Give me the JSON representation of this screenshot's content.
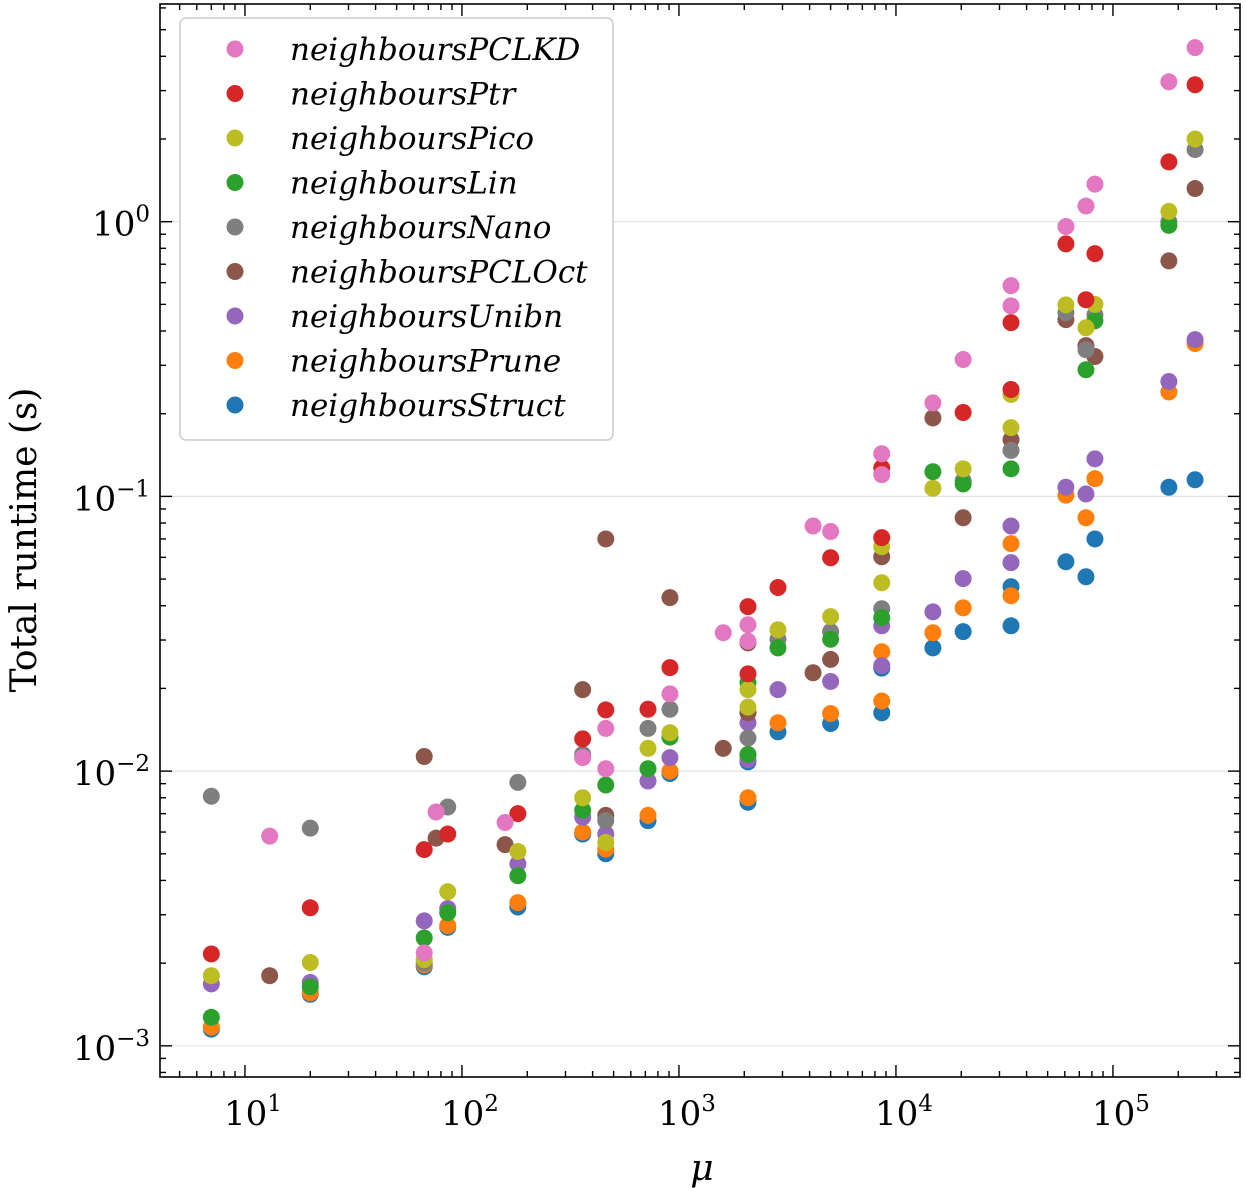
{
  "chart_data": {
    "type": "scatter",
    "title": "",
    "xlabel": "μ",
    "ylabel": "Total runtime (s)",
    "xscale": "log",
    "yscale": "log",
    "xlim": [
      4.06,
      385000
    ],
    "ylim": [
      0.00077,
      6.2
    ],
    "x_ticks": [
      10,
      100,
      1000,
      10000,
      100000
    ],
    "x_tick_labels": [
      {
        "base": "10",
        "exp": "1"
      },
      {
        "base": "10",
        "exp": "2"
      },
      {
        "base": "10",
        "exp": "3"
      },
      {
        "base": "10",
        "exp": "4"
      },
      {
        "base": "10",
        "exp": "5"
      }
    ],
    "y_ticks": [
      0.001,
      0.01,
      0.1,
      1
    ],
    "y_tick_labels": [
      {
        "base": "10",
        "exp": "−3"
      },
      {
        "base": "10",
        "exp": "−2"
      },
      {
        "base": "10",
        "exp": "−1"
      },
      {
        "base": "10",
        "exp": "0"
      }
    ],
    "grid": "horizontal major",
    "legend_position": "top-left",
    "series": [
      {
        "name": "neighboursPCLKD",
        "color": "#e377c2",
        "points": [
          [
            13,
            0.0058
          ],
          [
            67,
            0.00218
          ],
          [
            76,
            0.0071
          ],
          [
            158,
            0.0065
          ],
          [
            360,
            0.0112
          ],
          [
            460,
            0.0143
          ],
          [
            460,
            0.0102
          ],
          [
            909,
            0.0191
          ],
          [
            1600,
            0.0319
          ],
          [
            2080,
            0.0341
          ],
          [
            2080,
            0.0297
          ],
          [
            4150,
            0.078
          ],
          [
            5000,
            0.0745
          ],
          [
            8600,
            0.143
          ],
          [
            8600,
            0.12
          ],
          [
            14800,
            0.219
          ],
          [
            20400,
            0.315
          ],
          [
            33900,
            0.585
          ],
          [
            33900,
            0.494
          ],
          [
            60700,
            0.96
          ],
          [
            75100,
            1.14
          ],
          [
            82600,
            1.37
          ],
          [
            181000,
            3.23
          ],
          [
            239000,
            4.3
          ]
        ]
      },
      {
        "name": "neighboursPtr",
        "color": "#d62728",
        "points": [
          [
            7,
            0.00216
          ],
          [
            20,
            0.00318
          ],
          [
            67,
            0.00518
          ],
          [
            86,
            0.0059
          ],
          [
            181,
            0.007
          ],
          [
            360,
            0.0131
          ],
          [
            460,
            0.0167
          ],
          [
            720,
            0.0168
          ],
          [
            909,
            0.0238
          ],
          [
            2080,
            0.0397
          ],
          [
            2080,
            0.0226
          ],
          [
            2860,
            0.0466
          ],
          [
            5000,
            0.0598
          ],
          [
            8600,
            0.127
          ],
          [
            8600,
            0.0708
          ],
          [
            20400,
            0.202
          ],
          [
            33900,
            0.429
          ],
          [
            33900,
            0.245
          ],
          [
            60700,
            0.83
          ],
          [
            75100,
            0.52
          ],
          [
            82600,
            0.765
          ],
          [
            181000,
            1.65
          ],
          [
            239000,
            3.15
          ]
        ]
      },
      {
        "name": "neighboursPico",
        "color": "#bcbd22",
        "points": [
          [
            7,
            0.0018
          ],
          [
            20,
            0.00201
          ],
          [
            67,
            0.00206
          ],
          [
            86,
            0.00364
          ],
          [
            181,
            0.0051
          ],
          [
            360,
            0.008
          ],
          [
            460,
            0.0055
          ],
          [
            720,
            0.0121
          ],
          [
            909,
            0.0138
          ],
          [
            2080,
            0.0198
          ],
          [
            2080,
            0.0171
          ],
          [
            2860,
            0.0327
          ],
          [
            5000,
            0.0365
          ],
          [
            8600,
            0.0656
          ],
          [
            8600,
            0.0485
          ],
          [
            14800,
            0.107
          ],
          [
            20400,
            0.126
          ],
          [
            33900,
            0.235
          ],
          [
            33900,
            0.178
          ],
          [
            60700,
            0.498
          ],
          [
            75100,
            0.411
          ],
          [
            82600,
            0.5
          ],
          [
            181000,
            1.09
          ],
          [
            239000,
            2.0
          ]
        ]
      },
      {
        "name": "neighboursLin",
        "color": "#2ca02c",
        "points": [
          [
            7,
            0.00127
          ],
          [
            20,
            0.00164
          ],
          [
            67,
            0.00247
          ],
          [
            86,
            0.00305
          ],
          [
            181,
            0.00416
          ],
          [
            360,
            0.0072
          ],
          [
            460,
            0.0089
          ],
          [
            720,
            0.0102
          ],
          [
            909,
            0.0133
          ],
          [
            2080,
            0.021
          ],
          [
            2080,
            0.0115
          ],
          [
            2860,
            0.0281
          ],
          [
            5000,
            0.0302
          ],
          [
            8600,
            0.0362
          ],
          [
            14800,
            0.123
          ],
          [
            20400,
            0.111
          ],
          [
            33900,
            0.126
          ],
          [
            75100,
            0.289
          ],
          [
            82600,
            0.436
          ],
          [
            181000,
            0.97
          ]
        ]
      },
      {
        "name": "neighboursNano",
        "color": "#7f7f7f",
        "points": [
          [
            7,
            0.0081
          ],
          [
            20,
            0.0062
          ],
          [
            67,
            0.002
          ],
          [
            86,
            0.0074
          ],
          [
            181,
            0.0091
          ],
          [
            360,
            0.0115
          ],
          [
            460,
            0.0066
          ],
          [
            720,
            0.0143
          ],
          [
            909,
            0.0168
          ],
          [
            2080,
            0.0132
          ],
          [
            2860,
            0.0302
          ],
          [
            5000,
            0.0322
          ],
          [
            8600,
            0.039
          ],
          [
            20400,
            0.114
          ],
          [
            33900,
            0.147
          ],
          [
            60700,
            0.466
          ],
          [
            75100,
            0.342
          ],
          [
            82600,
            0.458
          ],
          [
            181000,
            1.0
          ],
          [
            239000,
            1.83
          ]
        ]
      },
      {
        "name": "neighboursPCLOct",
        "color": "#8c564b",
        "points": [
          [
            13,
            0.0018
          ],
          [
            67,
            0.0113
          ],
          [
            76,
            0.0057
          ],
          [
            158,
            0.0054
          ],
          [
            360,
            0.0198
          ],
          [
            460,
            0.07
          ],
          [
            460,
            0.0069
          ],
          [
            909,
            0.0428
          ],
          [
            1600,
            0.0121
          ],
          [
            2080,
            0.0293
          ],
          [
            2080,
            0.0163
          ],
          [
            4150,
            0.0228
          ],
          [
            5000,
            0.0255
          ],
          [
            8600,
            0.0603
          ],
          [
            14800,
            0.193
          ],
          [
            20400,
            0.0836
          ],
          [
            33900,
            0.161
          ],
          [
            60700,
            0.44
          ],
          [
            75100,
            0.354
          ],
          [
            82600,
            0.323
          ],
          [
            181000,
            0.72
          ],
          [
            239000,
            1.32
          ]
        ]
      },
      {
        "name": "neighboursUnibn",
        "color": "#9467bd",
        "points": [
          [
            7,
            0.00168
          ],
          [
            20,
            0.0017
          ],
          [
            67,
            0.00285
          ],
          [
            86,
            0.00316
          ],
          [
            181,
            0.0046
          ],
          [
            360,
            0.0068
          ],
          [
            460,
            0.0059
          ],
          [
            720,
            0.0092
          ],
          [
            909,
            0.0112
          ],
          [
            2080,
            0.015
          ],
          [
            2080,
            0.011
          ],
          [
            2860,
            0.0198
          ],
          [
            5000,
            0.0212
          ],
          [
            8600,
            0.0338
          ],
          [
            8600,
            0.0242
          ],
          [
            14800,
            0.038
          ],
          [
            20400,
            0.0502
          ],
          [
            33900,
            0.078
          ],
          [
            33900,
            0.0574
          ],
          [
            60700,
            0.108
          ],
          [
            75100,
            0.102
          ],
          [
            82600,
            0.137
          ],
          [
            181000,
            0.262
          ],
          [
            239000,
            0.372
          ]
        ]
      },
      {
        "name": "neighboursPrune",
        "color": "#ff7f0e",
        "points": [
          [
            7,
            0.00117
          ],
          [
            20,
            0.00156
          ],
          [
            67,
            0.00197
          ],
          [
            86,
            0.00274
          ],
          [
            181,
            0.00332
          ],
          [
            360,
            0.006
          ],
          [
            460,
            0.0052
          ],
          [
            720,
            0.0069
          ],
          [
            909,
            0.01
          ],
          [
            2080,
            0.0114
          ],
          [
            2080,
            0.008
          ],
          [
            2860,
            0.015
          ],
          [
            5000,
            0.0162
          ],
          [
            8600,
            0.0272
          ],
          [
            8600,
            0.018
          ],
          [
            14800,
            0.0319
          ],
          [
            20400,
            0.0393
          ],
          [
            33900,
            0.0673
          ],
          [
            33900,
            0.0435
          ],
          [
            60700,
            0.101
          ],
          [
            75100,
            0.0836
          ],
          [
            82600,
            0.116
          ],
          [
            181000,
            0.24
          ],
          [
            239000,
            0.36
          ]
        ]
      },
      {
        "name": "neighboursStruct",
        "color": "#1f77b4",
        "points": [
          [
            7,
            0.00115
          ],
          [
            20,
            0.00154
          ],
          [
            67,
            0.00194
          ],
          [
            86,
            0.0027
          ],
          [
            181,
            0.0032
          ],
          [
            360,
            0.0059
          ],
          [
            460,
            0.005
          ],
          [
            720,
            0.0066
          ],
          [
            909,
            0.0098
          ],
          [
            2080,
            0.0108
          ],
          [
            2080,
            0.0077
          ],
          [
            2860,
            0.0139
          ],
          [
            5000,
            0.0149
          ],
          [
            8600,
            0.0237
          ],
          [
            8600,
            0.0163
          ],
          [
            14800,
            0.0281
          ],
          [
            20400,
            0.0322
          ],
          [
            33900,
            0.0469
          ],
          [
            33900,
            0.0338
          ],
          [
            60700,
            0.0578
          ],
          [
            75100,
            0.051
          ],
          [
            82600,
            0.07
          ],
          [
            181000,
            0.108
          ],
          [
            239000,
            0.115
          ]
        ]
      }
    ]
  }
}
